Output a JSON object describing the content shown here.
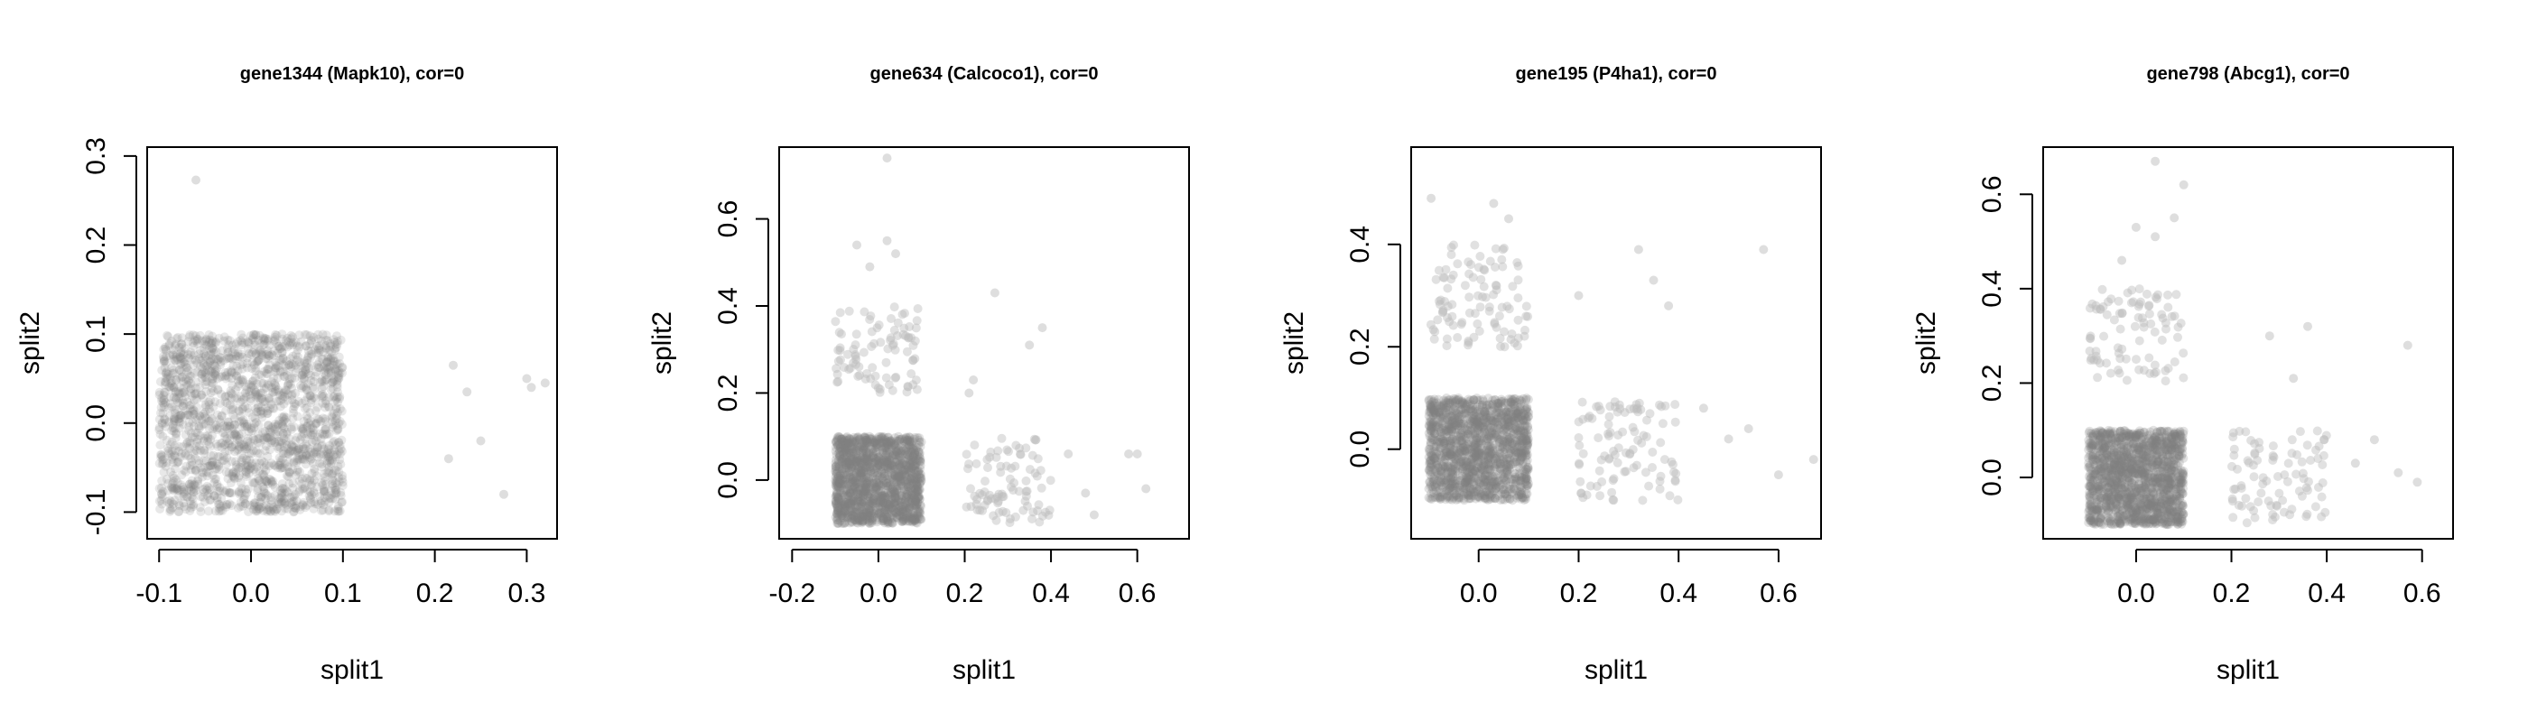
{
  "chart_data": [
    {
      "type": "scatter",
      "title": "gene1344 (Mapk10), cor=0",
      "xlabel": "split1",
      "ylabel": "split2",
      "xlim": [
        -0.113,
        0.333
      ],
      "ylim": [
        -0.13,
        0.31
      ],
      "xticks": [
        -0.1,
        0.0,
        0.1,
        0.2,
        0.3
      ],
      "xtick_labels": [
        "-0.1",
        "0.0",
        "0.1",
        "0.2",
        "0.3"
      ],
      "yticks": [
        -0.1,
        0.0,
        0.1,
        0.2,
        0.3
      ],
      "ytick_labels": [
        "-0.1",
        "0.0",
        "0.1",
        "0.2",
        "0.3"
      ],
      "clusters": [
        {
          "x_range": [
            -0.1,
            0.1
          ],
          "y_range": [
            -0.1,
            0.1
          ],
          "count": 1800,
          "color": "#7f7f7f",
          "opacity": 0.18
        }
      ],
      "points": [
        {
          "x": -0.06,
          "y": 0.273
        },
        {
          "x": 0.22,
          "y": 0.065
        },
        {
          "x": 0.235,
          "y": 0.035
        },
        {
          "x": 0.25,
          "y": -0.02
        },
        {
          "x": 0.215,
          "y": -0.04
        },
        {
          "x": 0.275,
          "y": -0.08
        },
        {
          "x": 0.3,
          "y": 0.05
        },
        {
          "x": 0.32,
          "y": 0.045
        },
        {
          "x": 0.305,
          "y": 0.04
        }
      ],
      "point_color": "#bdbdbd"
    },
    {
      "type": "scatter",
      "title": "gene634 (Calcoco1), cor=0",
      "xlabel": "split1",
      "ylabel": "split2",
      "xlim": [
        -0.23,
        0.72
      ],
      "ylim": [
        -0.135,
        0.765
      ],
      "xticks": [
        -0.2,
        0.0,
        0.2,
        0.4,
        0.6
      ],
      "xtick_labels": [
        "-0.2",
        "0.0",
        "0.2",
        "0.4",
        "0.6"
      ],
      "yticks": [
        0.0,
        0.2,
        0.4,
        0.6
      ],
      "ytick_labels": [
        "0.0",
        "0.2",
        "0.4",
        "0.6"
      ],
      "clusters": [
        {
          "x_range": [
            -0.1,
            0.1
          ],
          "y_range": [
            -0.1,
            0.1
          ],
          "count": 1500,
          "color": "#7f7f7f",
          "opacity": 0.22
        },
        {
          "x_range": [
            -0.1,
            0.1
          ],
          "y_range": [
            0.2,
            0.4
          ],
          "count": 90,
          "color": "#bdbdbd",
          "opacity": 0.45
        },
        {
          "x_range": [
            0.2,
            0.4
          ],
          "y_range": [
            -0.1,
            0.1
          ],
          "count": 90,
          "color": "#bdbdbd",
          "opacity": 0.45
        }
      ],
      "points": [
        {
          "x": 0.02,
          "y": 0.74
        },
        {
          "x": -0.05,
          "y": 0.54
        },
        {
          "x": 0.02,
          "y": 0.55
        },
        {
          "x": 0.04,
          "y": 0.52
        },
        {
          "x": -0.02,
          "y": 0.49
        },
        {
          "x": 0.22,
          "y": 0.23
        },
        {
          "x": 0.21,
          "y": 0.2
        },
        {
          "x": 0.27,
          "y": 0.43
        },
        {
          "x": 0.35,
          "y": 0.31
        },
        {
          "x": 0.38,
          "y": 0.35
        },
        {
          "x": 0.44,
          "y": 0.06
        },
        {
          "x": 0.48,
          "y": -0.03
        },
        {
          "x": 0.5,
          "y": -0.08
        },
        {
          "x": 0.58,
          "y": 0.06
        },
        {
          "x": 0.6,
          "y": 0.06
        },
        {
          "x": 0.62,
          "y": -0.02
        }
      ],
      "point_color": "#bdbdbd"
    },
    {
      "type": "scatter",
      "title": "gene195 (P4ha1), cor=0",
      "xlabel": "split1",
      "ylabel": "split2",
      "xlim": [
        -0.135,
        0.685
      ],
      "ylim": [
        -0.175,
        0.59
      ],
      "xticks": [
        0.0,
        0.2,
        0.4,
        0.6
      ],
      "xtick_labels": [
        "0.0",
        "0.2",
        "0.4",
        "0.6"
      ],
      "yticks": [
        0.0,
        0.2,
        0.4
      ],
      "ytick_labels": [
        "0.0",
        "0.2",
        "0.4"
      ],
      "clusters": [
        {
          "x_range": [
            -0.1,
            0.1
          ],
          "y_range": [
            -0.1,
            0.1
          ],
          "count": 1500,
          "color": "#7f7f7f",
          "opacity": 0.22
        },
        {
          "x_range": [
            -0.1,
            0.1
          ],
          "y_range": [
            0.2,
            0.4
          ],
          "count": 100,
          "color": "#bdbdbd",
          "opacity": 0.45
        },
        {
          "x_range": [
            0.2,
            0.4
          ],
          "y_range": [
            -0.1,
            0.1
          ],
          "count": 100,
          "color": "#bdbdbd",
          "opacity": 0.45
        }
      ],
      "points": [
        {
          "x": -0.095,
          "y": 0.49
        },
        {
          "x": 0.03,
          "y": 0.48
        },
        {
          "x": 0.06,
          "y": 0.45
        },
        {
          "x": 0.2,
          "y": 0.3
        },
        {
          "x": 0.32,
          "y": 0.39
        },
        {
          "x": 0.35,
          "y": 0.33
        },
        {
          "x": 0.38,
          "y": 0.28
        },
        {
          "x": 0.45,
          "y": 0.08
        },
        {
          "x": 0.5,
          "y": 0.02
        },
        {
          "x": 0.54,
          "y": 0.04
        },
        {
          "x": 0.57,
          "y": 0.39
        },
        {
          "x": 0.6,
          "y": -0.05
        },
        {
          "x": 0.67,
          "y": -0.02
        }
      ],
      "point_color": "#bdbdbd"
    },
    {
      "type": "scatter",
      "title": "gene798 (Abcg1), cor=0",
      "xlabel": "split1",
      "ylabel": "split2",
      "xlim": [
        -0.195,
        0.665
      ],
      "ylim": [
        -0.13,
        0.7
      ],
      "xticks": [
        0.0,
        0.2,
        0.4,
        0.6
      ],
      "xtick_labels": [
        "0.0",
        "0.2",
        "0.4",
        "0.6"
      ],
      "yticks": [
        0.0,
        0.2,
        0.4,
        0.6
      ],
      "ytick_labels": [
        "0.0",
        "0.2",
        "0.4",
        "0.6"
      ],
      "clusters": [
        {
          "x_range": [
            -0.1,
            0.1
          ],
          "y_range": [
            -0.1,
            0.1
          ],
          "count": 1500,
          "color": "#7f7f7f",
          "opacity": 0.22
        },
        {
          "x_range": [
            -0.1,
            0.1
          ],
          "y_range": [
            0.2,
            0.4
          ],
          "count": 90,
          "color": "#bdbdbd",
          "opacity": 0.45
        },
        {
          "x_range": [
            0.2,
            0.4
          ],
          "y_range": [
            -0.1,
            0.1
          ],
          "count": 90,
          "color": "#bdbdbd",
          "opacity": 0.45
        }
      ],
      "points": [
        {
          "x": 0.04,
          "y": 0.67
        },
        {
          "x": 0.0,
          "y": 0.53
        },
        {
          "x": 0.04,
          "y": 0.51
        },
        {
          "x": 0.08,
          "y": 0.55
        },
        {
          "x": 0.1,
          "y": 0.62
        },
        {
          "x": -0.03,
          "y": 0.46
        },
        {
          "x": 0.28,
          "y": 0.3
        },
        {
          "x": 0.36,
          "y": 0.32
        },
        {
          "x": 0.33,
          "y": 0.21
        },
        {
          "x": 0.46,
          "y": 0.03
        },
        {
          "x": 0.5,
          "y": 0.08
        },
        {
          "x": 0.55,
          "y": 0.01
        },
        {
          "x": 0.57,
          "y": 0.28
        },
        {
          "x": 0.59,
          "y": -0.01
        }
      ],
      "point_color": "#bdbdbd"
    }
  ]
}
